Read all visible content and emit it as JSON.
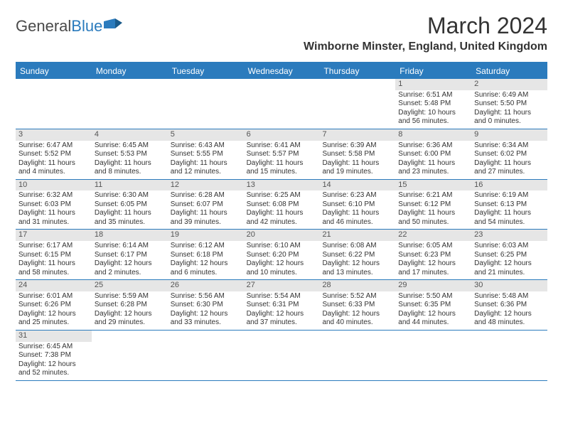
{
  "logo": {
    "part1": "General",
    "part2": "Blue"
  },
  "title": "March 2024",
  "location": "Wimborne Minster, England, United Kingdom",
  "colors": {
    "accent": "#2b7bbd",
    "day_num_bg": "#e6e6e6",
    "text": "#333333",
    "header_text": "#ffffff"
  },
  "day_headers": [
    "Sunday",
    "Monday",
    "Tuesday",
    "Wednesday",
    "Thursday",
    "Friday",
    "Saturday"
  ],
  "weeks": [
    [
      null,
      null,
      null,
      null,
      null,
      {
        "n": "1",
        "sr": "Sunrise: 6:51 AM",
        "ss": "Sunset: 5:48 PM",
        "dl": "Daylight: 10 hours and 56 minutes."
      },
      {
        "n": "2",
        "sr": "Sunrise: 6:49 AM",
        "ss": "Sunset: 5:50 PM",
        "dl": "Daylight: 11 hours and 0 minutes."
      }
    ],
    [
      {
        "n": "3",
        "sr": "Sunrise: 6:47 AM",
        "ss": "Sunset: 5:52 PM",
        "dl": "Daylight: 11 hours and 4 minutes."
      },
      {
        "n": "4",
        "sr": "Sunrise: 6:45 AM",
        "ss": "Sunset: 5:53 PM",
        "dl": "Daylight: 11 hours and 8 minutes."
      },
      {
        "n": "5",
        "sr": "Sunrise: 6:43 AM",
        "ss": "Sunset: 5:55 PM",
        "dl": "Daylight: 11 hours and 12 minutes."
      },
      {
        "n": "6",
        "sr": "Sunrise: 6:41 AM",
        "ss": "Sunset: 5:57 PM",
        "dl": "Daylight: 11 hours and 15 minutes."
      },
      {
        "n": "7",
        "sr": "Sunrise: 6:39 AM",
        "ss": "Sunset: 5:58 PM",
        "dl": "Daylight: 11 hours and 19 minutes."
      },
      {
        "n": "8",
        "sr": "Sunrise: 6:36 AM",
        "ss": "Sunset: 6:00 PM",
        "dl": "Daylight: 11 hours and 23 minutes."
      },
      {
        "n": "9",
        "sr": "Sunrise: 6:34 AM",
        "ss": "Sunset: 6:02 PM",
        "dl": "Daylight: 11 hours and 27 minutes."
      }
    ],
    [
      {
        "n": "10",
        "sr": "Sunrise: 6:32 AM",
        "ss": "Sunset: 6:03 PM",
        "dl": "Daylight: 11 hours and 31 minutes."
      },
      {
        "n": "11",
        "sr": "Sunrise: 6:30 AM",
        "ss": "Sunset: 6:05 PM",
        "dl": "Daylight: 11 hours and 35 minutes."
      },
      {
        "n": "12",
        "sr": "Sunrise: 6:28 AM",
        "ss": "Sunset: 6:07 PM",
        "dl": "Daylight: 11 hours and 39 minutes."
      },
      {
        "n": "13",
        "sr": "Sunrise: 6:25 AM",
        "ss": "Sunset: 6:08 PM",
        "dl": "Daylight: 11 hours and 42 minutes."
      },
      {
        "n": "14",
        "sr": "Sunrise: 6:23 AM",
        "ss": "Sunset: 6:10 PM",
        "dl": "Daylight: 11 hours and 46 minutes."
      },
      {
        "n": "15",
        "sr": "Sunrise: 6:21 AM",
        "ss": "Sunset: 6:12 PM",
        "dl": "Daylight: 11 hours and 50 minutes."
      },
      {
        "n": "16",
        "sr": "Sunrise: 6:19 AM",
        "ss": "Sunset: 6:13 PM",
        "dl": "Daylight: 11 hours and 54 minutes."
      }
    ],
    [
      {
        "n": "17",
        "sr": "Sunrise: 6:17 AM",
        "ss": "Sunset: 6:15 PM",
        "dl": "Daylight: 11 hours and 58 minutes."
      },
      {
        "n": "18",
        "sr": "Sunrise: 6:14 AM",
        "ss": "Sunset: 6:17 PM",
        "dl": "Daylight: 12 hours and 2 minutes."
      },
      {
        "n": "19",
        "sr": "Sunrise: 6:12 AM",
        "ss": "Sunset: 6:18 PM",
        "dl": "Daylight: 12 hours and 6 minutes."
      },
      {
        "n": "20",
        "sr": "Sunrise: 6:10 AM",
        "ss": "Sunset: 6:20 PM",
        "dl": "Daylight: 12 hours and 10 minutes."
      },
      {
        "n": "21",
        "sr": "Sunrise: 6:08 AM",
        "ss": "Sunset: 6:22 PM",
        "dl": "Daylight: 12 hours and 13 minutes."
      },
      {
        "n": "22",
        "sr": "Sunrise: 6:05 AM",
        "ss": "Sunset: 6:23 PM",
        "dl": "Daylight: 12 hours and 17 minutes."
      },
      {
        "n": "23",
        "sr": "Sunrise: 6:03 AM",
        "ss": "Sunset: 6:25 PM",
        "dl": "Daylight: 12 hours and 21 minutes."
      }
    ],
    [
      {
        "n": "24",
        "sr": "Sunrise: 6:01 AM",
        "ss": "Sunset: 6:26 PM",
        "dl": "Daylight: 12 hours and 25 minutes."
      },
      {
        "n": "25",
        "sr": "Sunrise: 5:59 AM",
        "ss": "Sunset: 6:28 PM",
        "dl": "Daylight: 12 hours and 29 minutes."
      },
      {
        "n": "26",
        "sr": "Sunrise: 5:56 AM",
        "ss": "Sunset: 6:30 PM",
        "dl": "Daylight: 12 hours and 33 minutes."
      },
      {
        "n": "27",
        "sr": "Sunrise: 5:54 AM",
        "ss": "Sunset: 6:31 PM",
        "dl": "Daylight: 12 hours and 37 minutes."
      },
      {
        "n": "28",
        "sr": "Sunrise: 5:52 AM",
        "ss": "Sunset: 6:33 PM",
        "dl": "Daylight: 12 hours and 40 minutes."
      },
      {
        "n": "29",
        "sr": "Sunrise: 5:50 AM",
        "ss": "Sunset: 6:35 PM",
        "dl": "Daylight: 12 hours and 44 minutes."
      },
      {
        "n": "30",
        "sr": "Sunrise: 5:48 AM",
        "ss": "Sunset: 6:36 PM",
        "dl": "Daylight: 12 hours and 48 minutes."
      }
    ],
    [
      {
        "n": "31",
        "sr": "Sunrise: 6:45 AM",
        "ss": "Sunset: 7:38 PM",
        "dl": "Daylight: 12 hours and 52 minutes."
      },
      null,
      null,
      null,
      null,
      null,
      null
    ]
  ]
}
